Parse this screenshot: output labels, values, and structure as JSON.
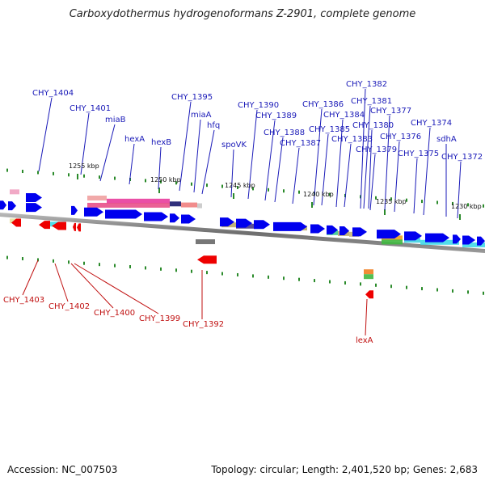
{
  "title": "Carboxydothermus hydrogenoformans Z-2901, complete genome",
  "footer": {
    "accession": "Accession: NC_007503",
    "topology": "Topology: circular; Length: 2,401,520 bp; Genes: 2,683"
  },
  "colors": {
    "forward_gene": "#0000ee",
    "reverse_gene": "#ee0000",
    "top_label": "#1a1ab8",
    "bottom_label": "#c01010",
    "backbone": "#808080",
    "tick": "#2a8a2a"
  },
  "ruler_ticks": [
    "1255 kbp",
    "1250 kbp",
    "1245 kbp",
    "1240 kbp",
    "1235 kbp",
    "1230 kbp"
  ],
  "top_genes": [
    "CHY_1404",
    "CHY_1401",
    "miaB",
    "hexA",
    "hexB",
    "CHY_1395",
    "miaA",
    "hfq",
    "spoVK",
    "CHY_1390",
    "CHY_1389",
    "CHY_1388",
    "CHY_1387",
    "CHY_1386",
    "CHY_1385",
    "CHY_1384",
    "CHY_1383",
    "CHY_1382",
    "CHY_1381",
    "CHY_1380",
    "CHY_1379",
    "CHY_1377",
    "CHY_1376",
    "CHY_1375",
    "CHY_1374",
    "sdhA",
    "CHY_1372"
  ],
  "bottom_genes": [
    "CHY_1403",
    "CHY_1402",
    "CHY_1400",
    "CHY_1399",
    "CHY_1392",
    "lexA"
  ]
}
